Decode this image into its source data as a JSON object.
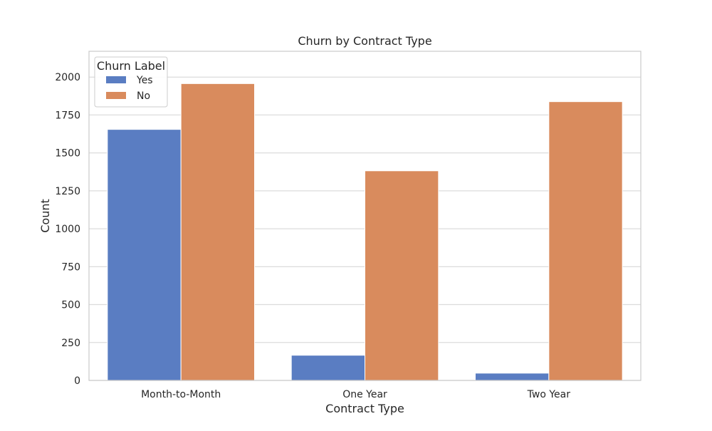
{
  "chart_data": {
    "type": "bar",
    "title": "Churn by Contract Type",
    "xlabel": "Contract Type",
    "ylabel": "Count",
    "categories": [
      "Month-to-Month",
      "One Year",
      "Two Year"
    ],
    "series": [
      {
        "name": "Yes",
        "values": [
          1655,
          166,
          48
        ],
        "color": "#5a7dc2"
      },
      {
        "name": "No",
        "values": [
          1957,
          1382,
          1838
        ],
        "color": "#d98b5d"
      }
    ],
    "ylim": [
      0,
      2170
    ],
    "yticks": [
      0,
      250,
      500,
      750,
      1000,
      1250,
      1500,
      1750,
      2000
    ],
    "grid": true,
    "legend": {
      "title": "Churn Label",
      "position": "top-left"
    }
  }
}
